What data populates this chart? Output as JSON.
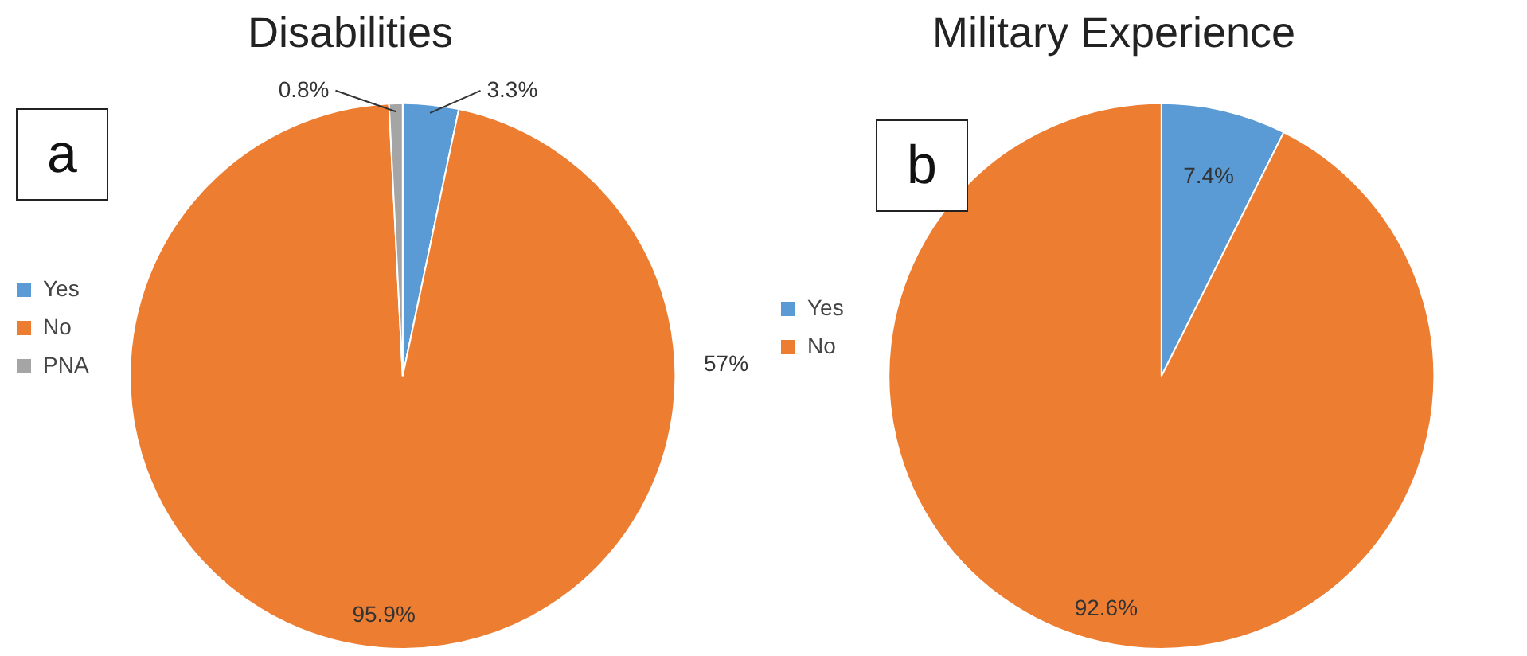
{
  "chart_data": [
    {
      "type": "pie",
      "title": "Disabilities",
      "categories": [
        "Yes",
        "No",
        "PNA"
      ],
      "values": [
        3.3,
        95.9,
        0.8
      ],
      "colors": [
        "#5b9bd5",
        "#ed7d31",
        "#a5a5a5"
      ],
      "legend": "left",
      "value_labels": [
        "3.3%",
        "95.9%",
        "0.8%"
      ],
      "annotations": [
        "a",
        "57%"
      ]
    },
    {
      "type": "pie",
      "title": "Military Experience",
      "categories": [
        "Yes",
        "No"
      ],
      "values": [
        7.4,
        92.6
      ],
      "colors": [
        "#5b9bd5",
        "#ed7d31"
      ],
      "legend": "left",
      "value_labels": [
        "7.4%",
        "92.6%"
      ],
      "annotations": [
        "b"
      ]
    }
  ]
}
